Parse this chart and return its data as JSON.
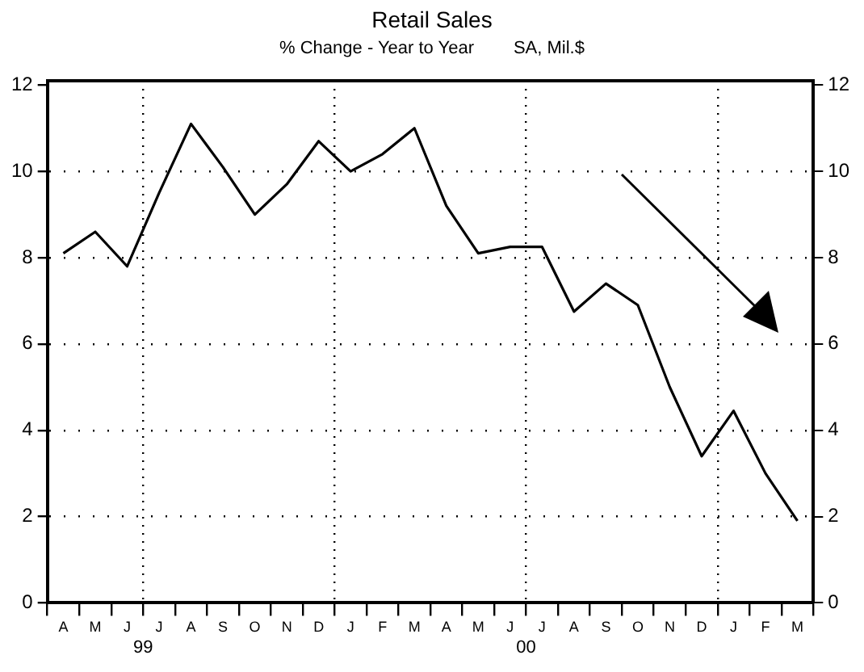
{
  "chart_data": {
    "type": "line",
    "title": "Retail Sales",
    "subtitle": "% Change - Year to Year        SA, Mil.$",
    "categories": [
      "A",
      "M",
      "J",
      "J",
      "A",
      "S",
      "O",
      "N",
      "D",
      "J",
      "F",
      "M",
      "A",
      "M",
      "J",
      "J",
      "A",
      "S",
      "O",
      "N",
      "D",
      "J",
      "F",
      "M"
    ],
    "series": [
      {
        "color": "#000000",
        "values": [
          8.1,
          8.6,
          7.8,
          9.5,
          11.1,
          10.1,
          9.0,
          9.7,
          10.7,
          10.0,
          10.4,
          11.0,
          9.2,
          8.1,
          8.25,
          8.25,
          6.75,
          7.4,
          6.9,
          5.0,
          3.4,
          4.45,
          3.0,
          1.9
        ]
      }
    ],
    "ylim": [
      0,
      12.1
    ],
    "yticks": [
      0,
      2,
      4,
      6,
      8,
      10,
      12
    ],
    "y2lim": [
      0,
      12.1
    ],
    "y2ticks": [
      0,
      2,
      4,
      6,
      8,
      10,
      12
    ],
    "annotations": [
      "99",
      "00"
    ],
    "grid": true,
    "legend": false,
    "marker": "none",
    "line_style": "solid"
  }
}
